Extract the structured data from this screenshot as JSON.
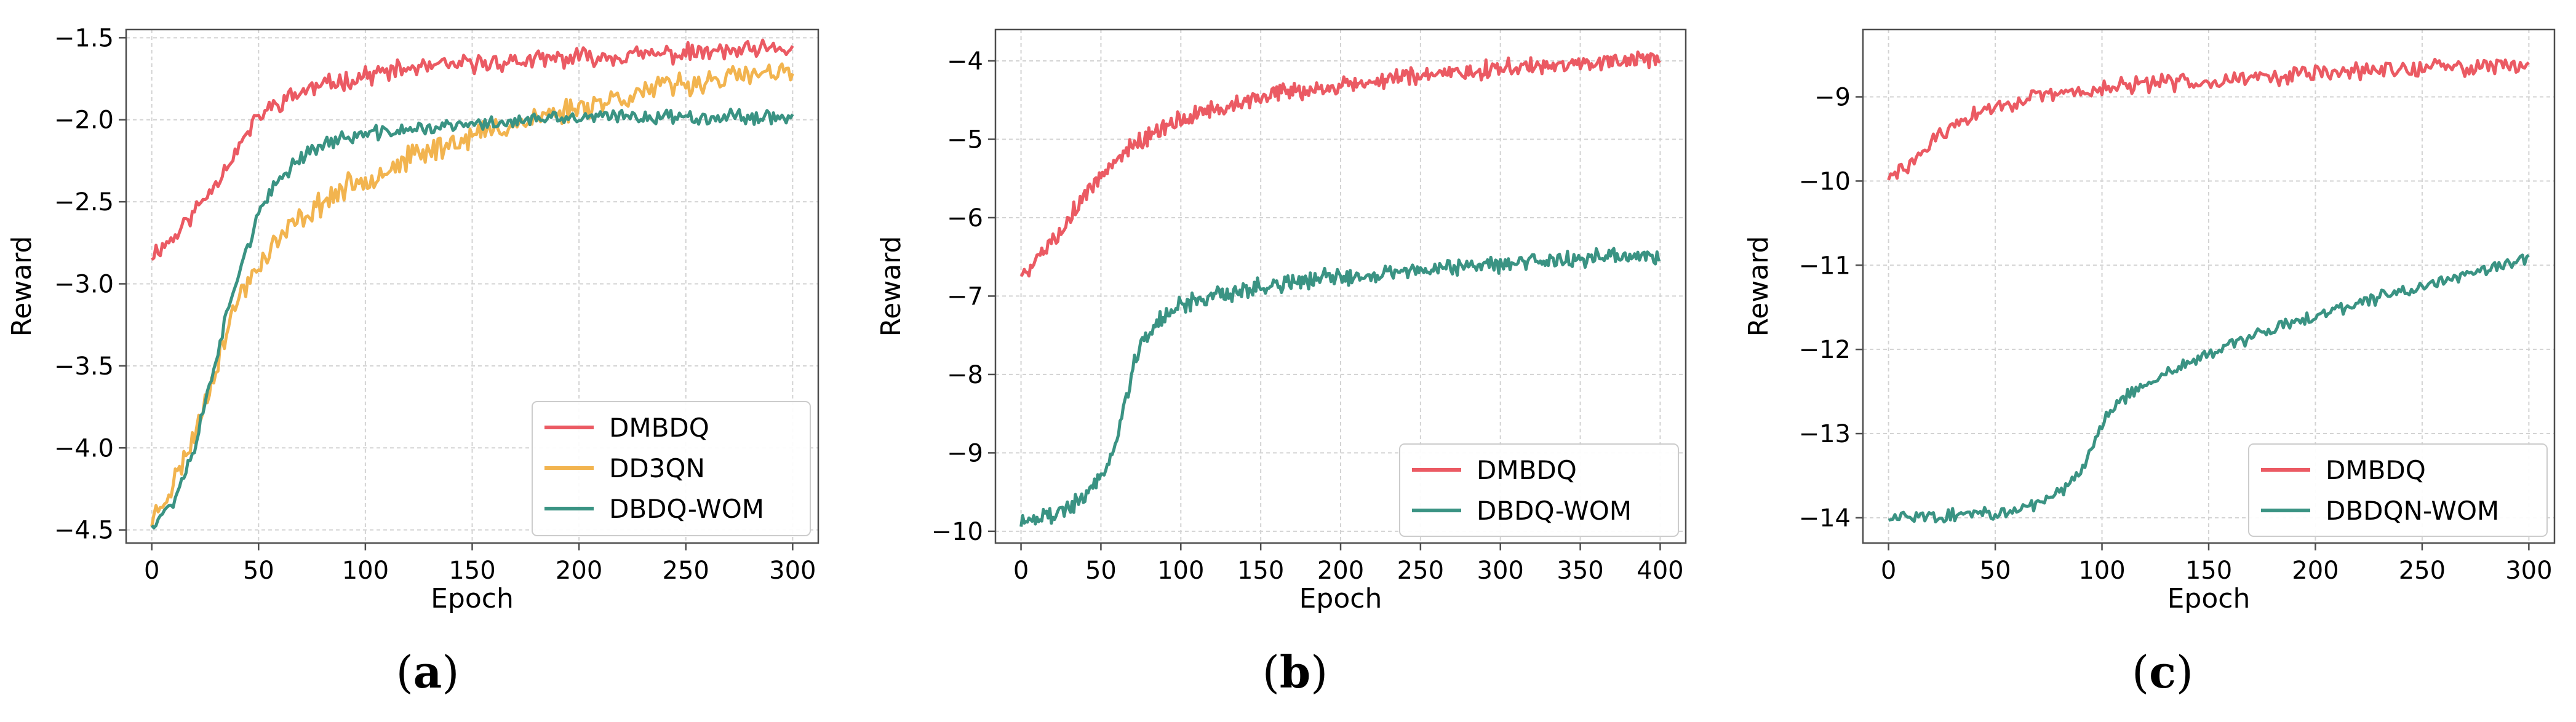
{
  "figure": {
    "colors": {
      "red": "#EB5A63",
      "orange": "#F2B44F",
      "teal": "#3A9383",
      "axis": "#4d4d4d",
      "grid": "#d3d3d3"
    }
  },
  "chart_data": [
    {
      "type": "line",
      "caption_letter": "a",
      "xlabel": "Epoch",
      "ylabel": "Reward",
      "xlim": [
        -12,
        312
      ],
      "ylim": [
        -4.58,
        -1.45
      ],
      "xticks": [
        0,
        50,
        100,
        150,
        200,
        250,
        300
      ],
      "xtick_labels": [
        "0",
        "50",
        "100",
        "150",
        "200",
        "250",
        "300"
      ],
      "yticks": [
        -4.5,
        -4.0,
        -3.5,
        -3.0,
        -2.5,
        -2.0,
        -1.5
      ],
      "ytick_labels": [
        "−4.5",
        "−4.0",
        "−3.5",
        "−3.0",
        "−2.5",
        "−2.0",
        "−1.5"
      ],
      "grid": true,
      "legend_position": "lower-right",
      "series": [
        {
          "name": "DMBDQ",
          "color": "#EB5A63",
          "x": [
            0,
            10,
            20,
            30,
            40,
            50,
            60,
            70,
            80,
            90,
            100,
            120,
            140,
            160,
            180,
            200,
            220,
            240,
            260,
            280,
            300
          ],
          "y": [
            -2.82,
            -2.72,
            -2.56,
            -2.38,
            -2.18,
            -1.98,
            -1.89,
            -1.83,
            -1.79,
            -1.76,
            -1.73,
            -1.69,
            -1.67,
            -1.65,
            -1.64,
            -1.62,
            -1.61,
            -1.6,
            -1.59,
            -1.58,
            -1.57
          ],
          "noise": 0.045,
          "points": 300,
          "seed": 11
        },
        {
          "name": "DD3QN",
          "color": "#F2B44F",
          "x": [
            0,
            10,
            20,
            30,
            40,
            50,
            60,
            70,
            80,
            90,
            100,
            120,
            140,
            160,
            180,
            200,
            220,
            240,
            260,
            280,
            300
          ],
          "y": [
            -4.44,
            -4.22,
            -3.92,
            -3.5,
            -3.1,
            -2.88,
            -2.72,
            -2.6,
            -2.5,
            -2.42,
            -2.36,
            -2.24,
            -2.14,
            -2.06,
            -1.99,
            -1.92,
            -1.86,
            -1.8,
            -1.76,
            -1.73,
            -1.72
          ],
          "noise": 0.06,
          "points": 300,
          "seed": 23
        },
        {
          "name": "DBDQ-WOM",
          "color": "#3A9383",
          "x": [
            0,
            10,
            20,
            30,
            40,
            50,
            60,
            70,
            80,
            90,
            100,
            120,
            140,
            160,
            180,
            200,
            220,
            240,
            260,
            280,
            300
          ],
          "y": [
            -4.46,
            -4.33,
            -4.0,
            -3.45,
            -2.95,
            -2.58,
            -2.36,
            -2.22,
            -2.15,
            -2.11,
            -2.09,
            -2.06,
            -2.04,
            -2.02,
            -2.0,
            -1.99,
            -1.98,
            -1.98,
            -1.98,
            -1.98,
            -1.98
          ],
          "noise": 0.035,
          "points": 300,
          "seed": 37
        }
      ]
    },
    {
      "type": "line",
      "caption_letter": "b",
      "xlabel": "Epoch",
      "ylabel": "Reward",
      "xlim": [
        -16,
        416
      ],
      "ylim": [
        -10.15,
        -3.6
      ],
      "xticks": [
        0,
        50,
        100,
        150,
        200,
        250,
        300,
        350,
        400
      ],
      "xtick_labels": [
        "0",
        "50",
        "100",
        "150",
        "200",
        "250",
        "300",
        "350",
        "400"
      ],
      "yticks": [
        -10,
        -9,
        -8,
        -7,
        -6,
        -5,
        -4
      ],
      "ytick_labels": [
        "−10",
        "−9",
        "−8",
        "−7",
        "−6",
        "−5",
        "−4"
      ],
      "grid": true,
      "legend_position": "lower-right",
      "series": [
        {
          "name": "DMBDQ",
          "color": "#EB5A63",
          "x": [
            0,
            10,
            20,
            30,
            40,
            50,
            60,
            70,
            80,
            100,
            120,
            150,
            200,
            250,
            300,
            350,
            400
          ],
          "y": [
            -6.72,
            -6.55,
            -6.28,
            -6.0,
            -5.72,
            -5.45,
            -5.22,
            -5.08,
            -4.95,
            -4.75,
            -4.62,
            -4.46,
            -4.32,
            -4.2,
            -4.1,
            -4.02,
            -3.96
          ],
          "noise": 0.09,
          "points": 400,
          "seed": 5
        },
        {
          "name": "DBDQ-WOM",
          "color": "#3A9383",
          "x": [
            0,
            20,
            30,
            40,
            50,
            60,
            65,
            70,
            80,
            90,
            100,
            120,
            150,
            200,
            250,
            300,
            350,
            400
          ],
          "y": [
            -9.85,
            -9.8,
            -9.7,
            -9.55,
            -9.3,
            -8.85,
            -8.4,
            -7.9,
            -7.45,
            -7.25,
            -7.12,
            -7.0,
            -6.88,
            -6.75,
            -6.66,
            -6.58,
            -6.52,
            -6.5
          ],
          "noise": 0.09,
          "points": 400,
          "seed": 19
        }
      ]
    },
    {
      "type": "line",
      "caption_letter": "c",
      "xlabel": "Epoch",
      "ylabel": "Reward",
      "xlim": [
        -12,
        312
      ],
      "ylim": [
        -14.3,
        -8.2
      ],
      "xticks": [
        0,
        50,
        100,
        150,
        200,
        250,
        300
      ],
      "xtick_labels": [
        "0",
        "50",
        "100",
        "150",
        "200",
        "250",
        "300"
      ],
      "yticks": [
        -14,
        -13,
        -12,
        -11,
        -10,
        -9
      ],
      "ytick_labels": [
        "−14",
        "−13",
        "−12",
        "−11",
        "−10",
        "−9"
      ],
      "grid": true,
      "legend_position": "lower-right",
      "series": [
        {
          "name": "DMBDQ",
          "color": "#EB5A63",
          "x": [
            0,
            10,
            20,
            30,
            40,
            50,
            60,
            80,
            100,
            120,
            150,
            180,
            200,
            250,
            300
          ],
          "y": [
            -9.98,
            -9.8,
            -9.55,
            -9.35,
            -9.22,
            -9.12,
            -9.05,
            -8.97,
            -8.9,
            -8.85,
            -8.8,
            -8.76,
            -8.72,
            -8.66,
            -8.62
          ],
          "noise": 0.08,
          "points": 300,
          "seed": 29
        },
        {
          "name": "DBDQN-WOM",
          "color": "#3A9383",
          "x": [
            0,
            30,
            50,
            70,
            80,
            90,
            95,
            100,
            105,
            110,
            120,
            130,
            150,
            170,
            200,
            250,
            300
          ],
          "y": [
            -13.98,
            -13.97,
            -13.95,
            -13.85,
            -13.72,
            -13.45,
            -13.2,
            -12.9,
            -12.7,
            -12.58,
            -12.42,
            -12.28,
            -12.05,
            -11.85,
            -11.6,
            -11.25,
            -10.92
          ],
          "noise": 0.06,
          "points": 300,
          "seed": 43
        }
      ]
    }
  ]
}
